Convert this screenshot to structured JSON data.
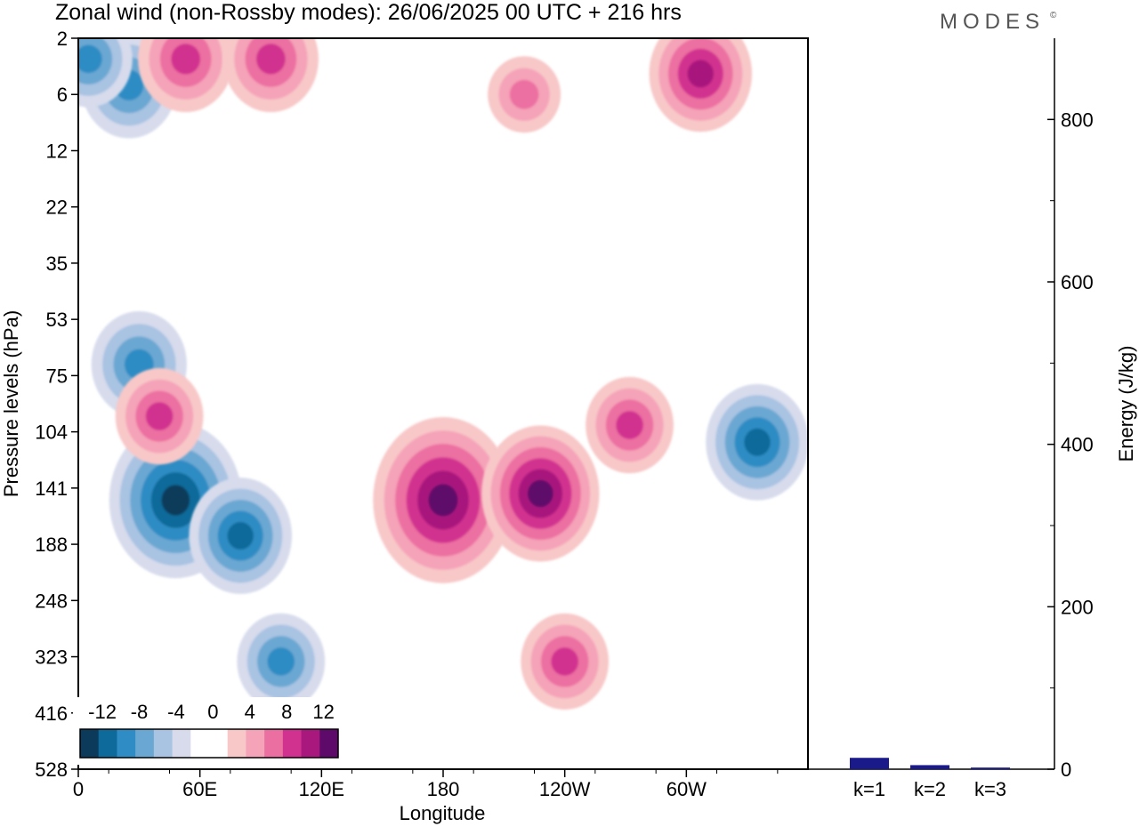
{
  "title": "Zonal wind (non-Rossby modes):  26/06/2025  00 UTC  + 216 hrs",
  "logo": "MODES",
  "logo_mark": "©",
  "chart_data": [
    {
      "type": "heatmap",
      "title": "Zonal wind (non-Rossby modes):  26/06/2025  00 UTC  + 216 hrs",
      "xlabel": "Longitude",
      "ylabel": "Pressure levels (hPa)",
      "x_ticks": [
        "0",
        "60E",
        "120E",
        "180",
        "120W",
        "60W"
      ],
      "y_ticks": [
        "2",
        "6",
        "12",
        "22",
        "35",
        "53",
        "75",
        "104",
        "141",
        "188",
        "248",
        "323",
        "416",
        "528"
      ],
      "colorbar": {
        "tick_labels": [
          "-12",
          "-8",
          "-4",
          "0",
          "4",
          "8",
          "12"
        ],
        "colors": [
          "#0b3a5a",
          "#0e6a9a",
          "#2f8cc4",
          "#6aa7d2",
          "#a9c3e2",
          "#d7dbec",
          "#ffffff",
          "#ffffff",
          "#f8c8c8",
          "#f5a3b8",
          "#ec6fa1",
          "#d2328f",
          "#a8187d",
          "#5e0a6a"
        ]
      },
      "features": [
        {
          "sign": "negative",
          "lon": 48,
          "p": 150,
          "value": -13
        },
        {
          "sign": "negative",
          "lon": 80,
          "p": 180,
          "value": -9
        },
        {
          "sign": "negative",
          "lon": 100,
          "p": 330,
          "value": -7
        },
        {
          "sign": "negative",
          "lon": 25,
          "p": 5,
          "value": -8
        },
        {
          "sign": "negative",
          "lon": 5,
          "p": 3,
          "value": -7
        },
        {
          "sign": "negative",
          "lon": 30,
          "p": 70,
          "value": -8
        },
        {
          "sign": "negative",
          "lon": 335,
          "p": 110,
          "value": -9
        },
        {
          "sign": "positive",
          "lon": 180,
          "p": 150,
          "value": 14
        },
        {
          "sign": "positive",
          "lon": 228,
          "p": 145,
          "value": 11
        },
        {
          "sign": "positive",
          "lon": 40,
          "p": 95,
          "value": 7
        },
        {
          "sign": "positive",
          "lon": 240,
          "p": 330,
          "value": 7
        },
        {
          "sign": "positive",
          "lon": 272,
          "p": 100,
          "value": 7
        },
        {
          "sign": "positive",
          "lon": 307,
          "p": 4,
          "value": 9
        },
        {
          "sign": "positive",
          "lon": 53,
          "p": 3,
          "value": 8
        },
        {
          "sign": "positive",
          "lon": 95,
          "p": 3,
          "value": 8
        },
        {
          "sign": "positive",
          "lon": 220,
          "p": 6,
          "value": 5
        }
      ]
    },
    {
      "type": "bar",
      "categories": [
        "k=1",
        "k=2",
        "k=3"
      ],
      "values": [
        14,
        5,
        2
      ],
      "ylabel": "Energy (J/kg)",
      "ylim": [
        0,
        900
      ],
      "y_ticks": [
        0,
        200,
        400,
        600,
        800
      ],
      "bar_color": "#1a1a8a"
    }
  ]
}
